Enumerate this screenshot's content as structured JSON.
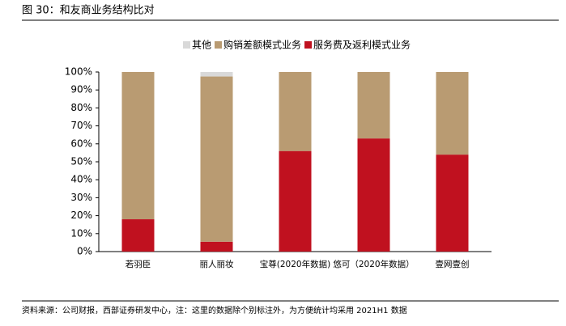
{
  "title": "图 30：和友商业务结构比对",
  "source": "资料来源：公司财报，西部证券研发中心，注：这里的数据除个别标注外，为方便统计均采用 2021H1 数据",
  "chart_data": {
    "type": "stacked_bar",
    "categories": [
      "若羽臣",
      "丽人丽妆",
      "宝尊(2020年数据)",
      "悠可（2020年数据）",
      "壹网壹创"
    ],
    "series": [
      {
        "name": "其他",
        "color": "#d9d9d9",
        "values": [
          0,
          2.5,
          0,
          0,
          0
        ]
      },
      {
        "name": "购销差额模式业务",
        "color": "#b99b72",
        "values": [
          82,
          92,
          44,
          37,
          46
        ]
      },
      {
        "name": "服务费及返利模式业务",
        "color": "#c0111f",
        "values": [
          18,
          5.5,
          56,
          63,
          54
        ]
      }
    ],
    "ylim": [
      0,
      100
    ],
    "yticks": [
      {
        "value": 0,
        "label": "0%"
      },
      {
        "value": 10,
        "label": "10%"
      },
      {
        "value": 20,
        "label": "20%"
      },
      {
        "value": 30,
        "label": "30%"
      },
      {
        "value": 40,
        "label": "40%"
      },
      {
        "value": 50,
        "label": "50%"
      },
      {
        "value": 60,
        "label": "60%"
      },
      {
        "value": 70,
        "label": "70%"
      },
      {
        "value": 80,
        "label": "80%"
      },
      {
        "value": 90,
        "label": "90%"
      },
      {
        "value": 100,
        "label": "100%"
      }
    ],
    "legend": "top"
  }
}
